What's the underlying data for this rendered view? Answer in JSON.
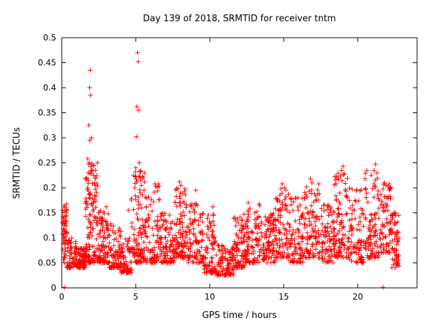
{
  "chart_data": {
    "type": "scatter",
    "title": "Day 139 of 2018, SRMTID for receiver tntm",
    "xlabel": "GPS time / hours",
    "ylabel": "SRMTID / TECUs",
    "xlim": [
      0,
      24
    ],
    "ylim": [
      0,
      0.5
    ],
    "grid": false,
    "legend": "none",
    "xticks": [
      {
        "value": 0,
        "label": "0"
      },
      {
        "value": 5,
        "label": "5"
      },
      {
        "value": 10,
        "label": "10"
      },
      {
        "value": 15,
        "label": "15"
      },
      {
        "value": 20,
        "label": "20"
      }
    ],
    "yticks": [
      {
        "value": 0,
        "label": "0"
      },
      {
        "value": 0.05,
        "label": "0.05"
      },
      {
        "value": 0.1,
        "label": "0.1"
      },
      {
        "value": 0.15,
        "label": "0.15"
      },
      {
        "value": 0.2,
        "label": "0.2"
      },
      {
        "value": 0.25,
        "label": "0.25"
      },
      {
        "value": 0.3,
        "label": "0.3"
      },
      {
        "value": 0.35,
        "label": "0.35"
      },
      {
        "value": 0.4,
        "label": "0.4"
      },
      {
        "value": 0.45,
        "label": "0.45"
      },
      {
        "value": 0.5,
        "label": "0.5"
      }
    ],
    "marker": {
      "symbol": "+",
      "color": "#ff0000",
      "size": 7
    },
    "axis_color": "#000000",
    "seed": 20180139,
    "point_clusters": [
      [
        0.05,
        0.35,
        55,
        0.05,
        0.17,
        1.2
      ],
      [
        0.35,
        1.0,
        60,
        0.04,
        0.11,
        1.8
      ],
      [
        1.0,
        1.6,
        90,
        0.04,
        0.08,
        1.5
      ],
      [
        1.6,
        2.45,
        120,
        0.05,
        0.26,
        1.9
      ],
      [
        2.45,
        3.2,
        90,
        0.05,
        0.16,
        1.8
      ],
      [
        3.2,
        4.0,
        80,
        0.04,
        0.13,
        1.8
      ],
      [
        4.0,
        4.7,
        70,
        0.03,
        0.1,
        1.6
      ],
      [
        4.7,
        5.6,
        110,
        0.05,
        0.24,
        1.7
      ],
      [
        5.6,
        6.6,
        90,
        0.05,
        0.21,
        2.0
      ],
      [
        6.6,
        7.6,
        95,
        0.05,
        0.15,
        1.6
      ],
      [
        7.6,
        8.4,
        95,
        0.06,
        0.2,
        1.8
      ],
      [
        8.4,
        9.6,
        100,
        0.05,
        0.17,
        1.8
      ],
      [
        9.6,
        10.4,
        80,
        0.03,
        0.15,
        2.0
      ],
      [
        10.4,
        11.6,
        100,
        0.025,
        0.085,
        1.5
      ],
      [
        11.6,
        12.4,
        85,
        0.04,
        0.15,
        1.8
      ],
      [
        12.4,
        13.4,
        95,
        0.05,
        0.17,
        1.8
      ],
      [
        13.4,
        14.4,
        95,
        0.05,
        0.15,
        1.6
      ],
      [
        14.4,
        15.4,
        95,
        0.06,
        0.2,
        1.8
      ],
      [
        15.4,
        16.4,
        90,
        0.05,
        0.18,
        1.7
      ],
      [
        16.4,
        17.4,
        95,
        0.06,
        0.21,
        1.8
      ],
      [
        17.4,
        18.4,
        85,
        0.05,
        0.17,
        1.7
      ],
      [
        18.4,
        19.4,
        95,
        0.06,
        0.23,
        1.8
      ],
      [
        19.4,
        20.4,
        85,
        0.05,
        0.2,
        1.8
      ],
      [
        20.4,
        21.4,
        95,
        0.06,
        0.24,
        1.8
      ],
      [
        21.4,
        22.3,
        85,
        0.07,
        0.21,
        1.5
      ],
      [
        22.3,
        22.8,
        55,
        0.04,
        0.15,
        1.4
      ]
    ],
    "outliers": [
      [
        0.18,
        0.001
      ],
      [
        21.7,
        0.001
      ],
      [
        1.93,
        0.435
      ],
      [
        1.88,
        0.4
      ],
      [
        1.95,
        0.385
      ],
      [
        1.83,
        0.325
      ],
      [
        2.02,
        0.3
      ],
      [
        1.9,
        0.295
      ],
      [
        1.86,
        0.25
      ],
      [
        2.05,
        0.248
      ],
      [
        1.97,
        0.242
      ],
      [
        2.1,
        0.235
      ],
      [
        1.8,
        0.23
      ],
      [
        2.15,
        0.225
      ],
      [
        1.78,
        0.215
      ],
      [
        2.2,
        0.21
      ],
      [
        2.25,
        0.205
      ],
      [
        1.75,
        0.2
      ],
      [
        5.12,
        0.47
      ],
      [
        5.16,
        0.452
      ],
      [
        5.08,
        0.362
      ],
      [
        5.2,
        0.355
      ],
      [
        5.05,
        0.302
      ],
      [
        5.24,
        0.25
      ],
      [
        5.0,
        0.24
      ],
      [
        5.28,
        0.232
      ],
      [
        4.97,
        0.222
      ],
      [
        5.32,
        0.215
      ],
      [
        5.38,
        0.205
      ],
      [
        4.93,
        0.2
      ],
      [
        7.95,
        0.212
      ],
      [
        8.05,
        0.205
      ],
      [
        7.85,
        0.198
      ],
      [
        6.3,
        0.208
      ],
      [
        9.05,
        0.195
      ],
      [
        10.2,
        0.162
      ],
      [
        14.9,
        0.208
      ],
      [
        15.05,
        0.2
      ],
      [
        16.8,
        0.218
      ],
      [
        16.9,
        0.21
      ],
      [
        19.0,
        0.243
      ],
      [
        18.9,
        0.235
      ],
      [
        19.1,
        0.228
      ],
      [
        21.2,
        0.247
      ],
      [
        21.1,
        0.235
      ],
      [
        20.9,
        0.225
      ],
      [
        21.8,
        0.21
      ],
      [
        21.9,
        0.205
      ],
      [
        12.6,
        0.17
      ],
      [
        3.0,
        0.162
      ],
      [
        4.5,
        0.155
      ],
      [
        22.5,
        0.148
      ]
    ]
  }
}
